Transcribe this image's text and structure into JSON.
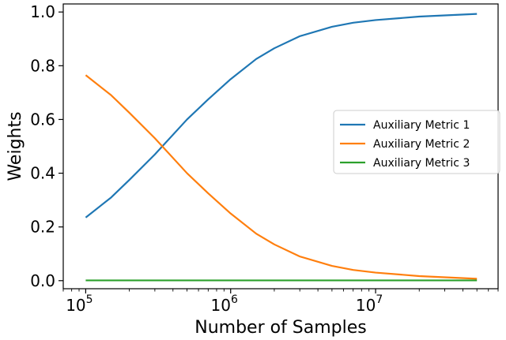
{
  "chart_data": {
    "type": "line",
    "title": "",
    "xlabel": "Number of Samples",
    "ylabel": "Weights",
    "xscale": "log",
    "xlim": [
      70000,
      70000000
    ],
    "ylim": [
      -0.03,
      1.03
    ],
    "x_ticks": [
      {
        "value": 100000,
        "base": "10",
        "exp": "5"
      },
      {
        "value": 1000000,
        "base": "10",
        "exp": "6"
      },
      {
        "value": 10000000,
        "base": "10",
        "exp": "7"
      }
    ],
    "y_ticks": [
      {
        "value": 0.0,
        "label": "0.0"
      },
      {
        "value": 0.2,
        "label": "0.2"
      },
      {
        "value": 0.4,
        "label": "0.4"
      },
      {
        "value": 0.6,
        "label": "0.6"
      },
      {
        "value": 0.8,
        "label": "0.8"
      },
      {
        "value": 1.0,
        "label": "1.0"
      }
    ],
    "grid": false,
    "legend_position": "center-right",
    "x": [
      100000,
      150000,
      200000,
      300000,
      500000,
      700000,
      1000000,
      1500000,
      2000000,
      3000000,
      5000000,
      7000000,
      10000000,
      20000000,
      50000000
    ],
    "series": [
      {
        "name": "Auxiliary Metric 1",
        "color": "#1f77b4",
        "values": [
          0.235,
          0.31,
          0.375,
          0.47,
          0.6,
          0.675,
          0.75,
          0.825,
          0.865,
          0.91,
          0.945,
          0.96,
          0.97,
          0.983,
          0.993
        ]
      },
      {
        "name": "Auxiliary Metric 2",
        "color": "#ff7f0e",
        "values": [
          0.765,
          0.69,
          0.625,
          0.53,
          0.4,
          0.325,
          0.25,
          0.175,
          0.135,
          0.09,
          0.055,
          0.04,
          0.03,
          0.017,
          0.007
        ]
      },
      {
        "name": "Auxiliary Metric 3",
        "color": "#2ca02c",
        "values": [
          0.001,
          0.001,
          0.001,
          0.001,
          0.001,
          0.001,
          0.001,
          0.001,
          0.001,
          0.001,
          0.001,
          0.001,
          0.001,
          0.001,
          0.001
        ]
      }
    ]
  }
}
